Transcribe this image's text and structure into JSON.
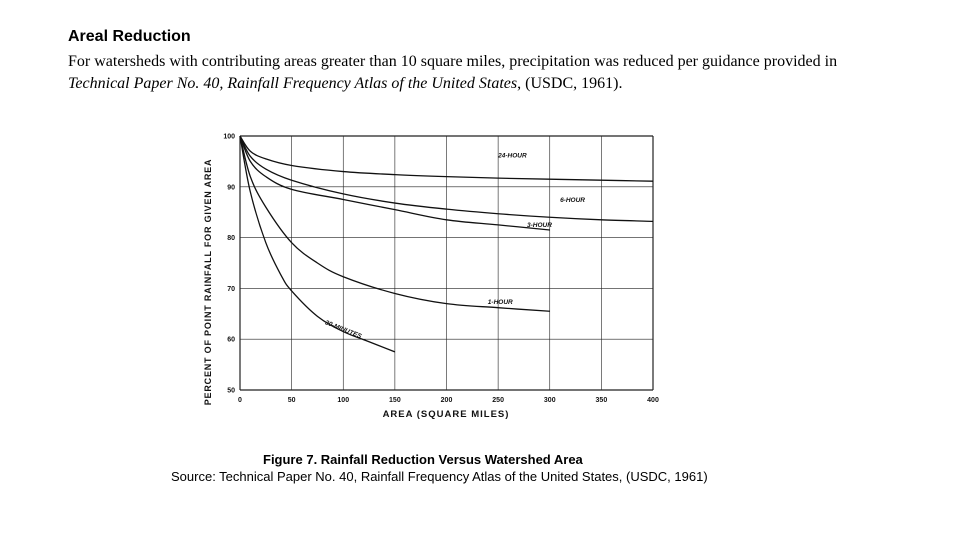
{
  "heading": "Areal Reduction",
  "paragraph": {
    "before": "For watersheds with contributing areas greater than 10 square miles, precipitation was reduced per guidance provided in ",
    "italic": "Technical Paper No. 40, Rainfall Frequency Atlas of the United States",
    "after": ", (USDC, 1961)."
  },
  "figure": {
    "caption": "Figure 7.  Rainfall Reduction Versus Watershed Area",
    "source": "Source:  Technical Paper No. 40, Rainfall Frequency Atlas of the United States, (USDC, 1961)"
  },
  "chart_data": {
    "type": "line",
    "xlabel": "AREA   (SQUARE MILES)",
    "ylabel": "PERCENT OF POINT RAINFALL FOR GIVEN AREA",
    "xlim": [
      0,
      400
    ],
    "ylim": [
      50,
      100
    ],
    "xticks": [
      0,
      50,
      100,
      150,
      200,
      250,
      300,
      350,
      400
    ],
    "yticks": [
      50,
      60,
      70,
      80,
      90,
      100
    ],
    "grid": true,
    "legend": "none",
    "series": [
      {
        "name": "24-HOUR",
        "x": [
          0,
          10,
          25,
          50,
          100,
          150,
          200,
          250,
          300,
          350,
          400
        ],
        "y": [
          100,
          97,
          95.5,
          94.2,
          93,
          92.4,
          92,
          91.7,
          91.5,
          91.3,
          91.1
        ]
      },
      {
        "name": "6-HOUR",
        "x": [
          0,
          10,
          25,
          50,
          100,
          150,
          200,
          250,
          300,
          350,
          400
        ],
        "y": [
          100,
          96,
          93.5,
          91.3,
          88.6,
          86.8,
          85.6,
          84.7,
          84,
          83.5,
          83.2
        ]
      },
      {
        "name": "3-HOUR",
        "x": [
          0,
          10,
          25,
          50,
          100,
          150,
          200,
          250,
          300
        ],
        "y": [
          100,
          95,
          92,
          89.5,
          87.5,
          85.5,
          83.5,
          82.5,
          81.5
        ]
      },
      {
        "name": "1-HOUR",
        "x": [
          0,
          10,
          25,
          50,
          75,
          100,
          150,
          200,
          250,
          300
        ],
        "y": [
          100,
          92,
          86,
          79,
          75,
          72.3,
          69,
          67,
          66.2,
          65.5
        ]
      },
      {
        "name": "30-MINUTES",
        "x": [
          0,
          10,
          25,
          40,
          50,
          75,
          100,
          125,
          150
        ],
        "y": [
          100,
          89,
          79,
          72.5,
          69.5,
          64.5,
          61.5,
          59.5,
          57.5
        ]
      }
    ]
  }
}
